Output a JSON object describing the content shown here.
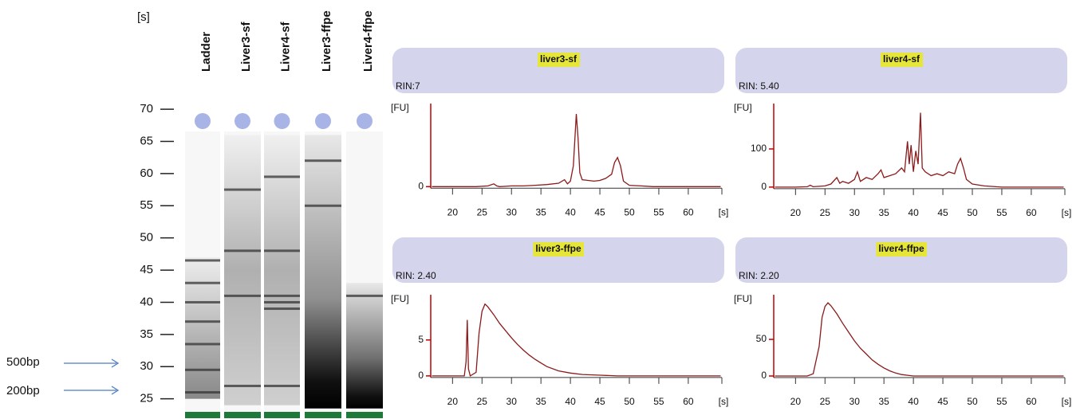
{
  "gel": {
    "y_label": "[s]",
    "ylim": [
      23.1,
      71
    ],
    "yticks": [
      25,
      30,
      35,
      40,
      45,
      50,
      55,
      60,
      65,
      70
    ],
    "markers": [
      "500bp",
      "200bp"
    ],
    "lanes": [
      {
        "name": "Ladder",
        "smear": [
          25,
          47
        ],
        "bands": [
          26,
          29.5,
          33.5,
          37,
          40,
          43,
          46.5
        ]
      },
      {
        "name": "Liver3-sf",
        "smear": [
          24,
          66
        ],
        "bands": [
          27,
          41,
          48,
          57.5
        ]
      },
      {
        "name": "Liver4-sf",
        "smear": [
          24,
          66
        ],
        "bands": [
          27,
          39,
          40,
          41,
          48,
          59.5
        ]
      },
      {
        "name": "Liver3-ffpe",
        "smear": [
          23.5,
          66
        ],
        "bands": [
          55,
          62
        ]
      },
      {
        "name": "Liver4-ffpe",
        "smear": [
          23.5,
          43
        ],
        "bands": [
          41
        ]
      }
    ]
  },
  "chart_data": [
    {
      "type": "line",
      "title": "liver3-sf",
      "subtitle": "RIN:7",
      "y_label": "[FU]",
      "x_label": "[s]",
      "xlim": [
        16.3,
        65.7
      ],
      "ylim": [
        -10,
        120
      ],
      "xticks": [
        20,
        25,
        30,
        35,
        40,
        45,
        50,
        55,
        60
      ],
      "yticks": [
        0
      ],
      "color": "#8b1a1a",
      "x": [
        16.5,
        18,
        20,
        22,
        24,
        26,
        27,
        27.5,
        28,
        30,
        32,
        34,
        36,
        38,
        39,
        39.5,
        40,
        40.5,
        41,
        41.3,
        41.6,
        42,
        43,
        44,
        45,
        46,
        47,
        47.5,
        48,
        48.5,
        49,
        50,
        52,
        54,
        56,
        60,
        65.5
      ],
      "values": [
        0,
        0,
        0,
        0,
        0,
        1,
        4,
        1,
        0,
        1,
        1,
        2,
        3,
        5,
        10,
        4,
        8,
        30,
        105,
        70,
        20,
        10,
        9,
        8,
        9,
        12,
        18,
        35,
        42,
        30,
        8,
        2,
        1,
        0,
        0,
        0,
        0
      ]
    },
    {
      "type": "line",
      "title": "liver4-sf",
      "subtitle": "RIN: 5.40",
      "y_label": "[FU]",
      "x_label": "[s]",
      "xlim": [
        16.3,
        65.7
      ],
      "ylim": [
        -17,
        219
      ],
      "xticks": [
        20,
        25,
        30,
        35,
        40,
        45,
        50,
        55,
        60
      ],
      "yticks": [
        0,
        100
      ],
      "color": "#8b1a1a",
      "x": [
        16.5,
        20,
        22,
        22.5,
        23,
        25,
        26,
        27,
        27.5,
        28,
        29,
        30,
        30.5,
        31,
        32,
        33,
        34,
        34.5,
        35,
        36,
        37,
        38,
        38.5,
        39,
        39.3,
        39.6,
        40,
        40.4,
        40.8,
        41.2,
        41.5,
        42,
        43,
        44,
        45,
        46,
        47,
        47.5,
        48,
        48.5,
        49,
        50,
        52,
        55,
        60,
        65.5
      ],
      "values": [
        0,
        0,
        1,
        5,
        1,
        3,
        8,
        25,
        10,
        15,
        10,
        20,
        40,
        15,
        25,
        20,
        35,
        45,
        25,
        30,
        35,
        50,
        40,
        120,
        60,
        110,
        40,
        95,
        60,
        195,
        50,
        40,
        30,
        35,
        30,
        40,
        35,
        60,
        75,
        50,
        20,
        8,
        3,
        0,
        0,
        0
      ]
    },
    {
      "type": "line",
      "title": "liver3-ffpe",
      "subtitle": "RIN: 2.40",
      "y_label": "[FU]",
      "x_label": "[s]",
      "xlim": [
        16.3,
        65.7
      ],
      "ylim": [
        -0.9,
        11.3
      ],
      "xticks": [
        20,
        25,
        30,
        35,
        40,
        45,
        50,
        55,
        60
      ],
      "yticks": [
        0,
        5
      ],
      "color": "#8b1a1a",
      "x": [
        16.5,
        20,
        22,
        22.3,
        22.5,
        22.7,
        23,
        24,
        24.5,
        25,
        25.5,
        26,
        27,
        28,
        29,
        30,
        31,
        32,
        33,
        34,
        35,
        36,
        38,
        40,
        42,
        45,
        48,
        50,
        55,
        60,
        65.5
      ],
      "values": [
        0,
        0,
        0,
        2,
        7.8,
        1,
        0,
        0.5,
        6,
        9,
        10,
        9.6,
        8.5,
        7.3,
        6.3,
        5.3,
        4.4,
        3.6,
        2.9,
        2.3,
        1.8,
        1.3,
        0.7,
        0.4,
        0.2,
        0.1,
        0,
        0,
        0,
        0,
        0
      ]
    },
    {
      "type": "line",
      "title": "liver4-ffpe",
      "subtitle": "RIN: 2.20",
      "y_label": "[FU]",
      "x_label": "[s]",
      "xlim": [
        16.3,
        65.7
      ],
      "ylim": [
        -8.7,
        111
      ],
      "xticks": [
        20,
        25,
        30,
        35,
        40,
        45,
        50,
        55,
        60
      ],
      "yticks": [
        0,
        50
      ],
      "color": "#8b1a1a",
      "x": [
        16.5,
        20,
        22,
        23,
        24,
        24.5,
        25,
        25.5,
        26,
        27,
        28,
        29,
        30,
        31,
        32,
        33,
        34,
        35,
        36,
        37,
        38,
        39,
        40,
        45,
        50,
        55,
        60,
        65.5
      ],
      "values": [
        0,
        0,
        0,
        3,
        40,
        80,
        95,
        100,
        96,
        85,
        72,
        60,
        48,
        38,
        30,
        22,
        16,
        11,
        7,
        4,
        2,
        1,
        0,
        0,
        0,
        0,
        0,
        0
      ]
    }
  ]
}
